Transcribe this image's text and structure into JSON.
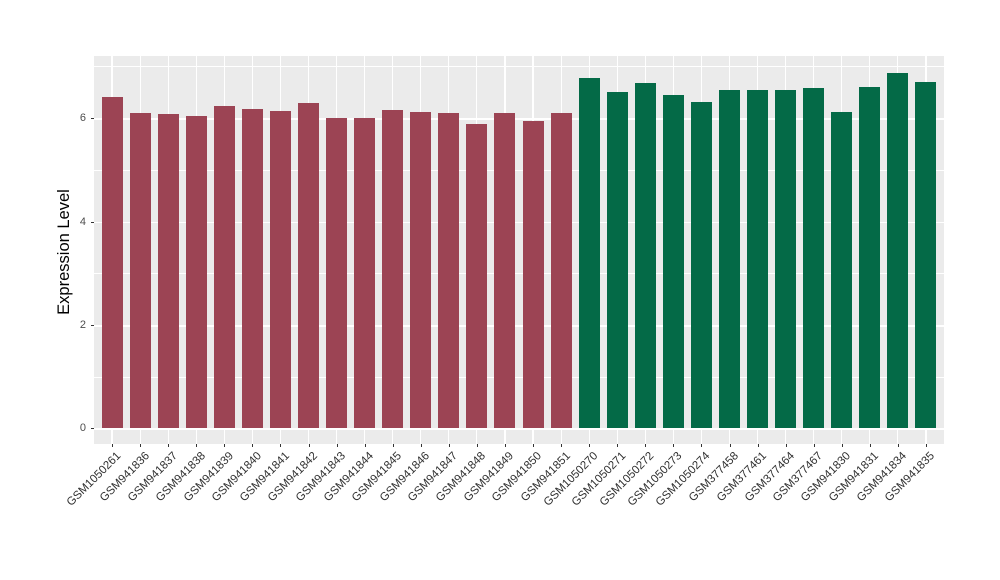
{
  "figure": {
    "background": "#FFFFFF",
    "panel_background": "#EBEBEB",
    "gridline_color": "#FFFFFF",
    "axis_text_color": "#4D4D4D",
    "axis_title_color": "#000000",
    "tick_mark_color": "#333333"
  },
  "chart_data": {
    "type": "bar",
    "title": "",
    "xlabel": "",
    "ylabel": "Expression Level",
    "categories": [
      "GSM1050261",
      "GSM941836",
      "GSM941837",
      "GSM941838",
      "GSM941839",
      "GSM941840",
      "GSM941841",
      "GSM941842",
      "GSM941843",
      "GSM941844",
      "GSM941845",
      "GSM941846",
      "GSM941847",
      "GSM941848",
      "GSM941849",
      "GSM941850",
      "GSM941851",
      "GSM1050270",
      "GSM1050271",
      "GSM1050272",
      "GSM1050273",
      "GSM1050274",
      "GSM377458",
      "GSM377461",
      "GSM377464",
      "GSM377467",
      "GSM941830",
      "GSM941831",
      "GSM941834",
      "GSM941835"
    ],
    "values": [
      6.41,
      6.1,
      6.08,
      6.04,
      6.23,
      6.18,
      6.14,
      6.3,
      6.0,
      6.0,
      6.15,
      6.11,
      6.09,
      5.89,
      6.09,
      5.95,
      6.09,
      6.78,
      6.51,
      6.68,
      6.45,
      6.31,
      6.55,
      6.55,
      6.54,
      6.58,
      6.11,
      6.61,
      6.87,
      6.7
    ],
    "bar_colors": [
      "#9C4454",
      "#9C4454",
      "#9C4454",
      "#9C4454",
      "#9C4454",
      "#9C4454",
      "#9C4454",
      "#9C4454",
      "#9C4454",
      "#9C4454",
      "#9C4454",
      "#9C4454",
      "#9C4454",
      "#9C4454",
      "#9C4454",
      "#9C4454",
      "#9C4454",
      "#046A47",
      "#046A47",
      "#046A47",
      "#046A47",
      "#046A47",
      "#046A47",
      "#046A47",
      "#046A47",
      "#046A47",
      "#046A47",
      "#046A47",
      "#046A47",
      "#046A47"
    ],
    "group_colors": {
      "left_group": "#9C4454",
      "right_group": "#046A47"
    },
    "ylim": [
      -0.3,
      7.2
    ],
    "yticks": [
      0,
      2,
      4,
      6
    ],
    "yticks_minor": [
      1,
      3,
      5,
      7
    ],
    "grid": true,
    "legend_position": "none",
    "x_tick_label_angle": 45
  }
}
